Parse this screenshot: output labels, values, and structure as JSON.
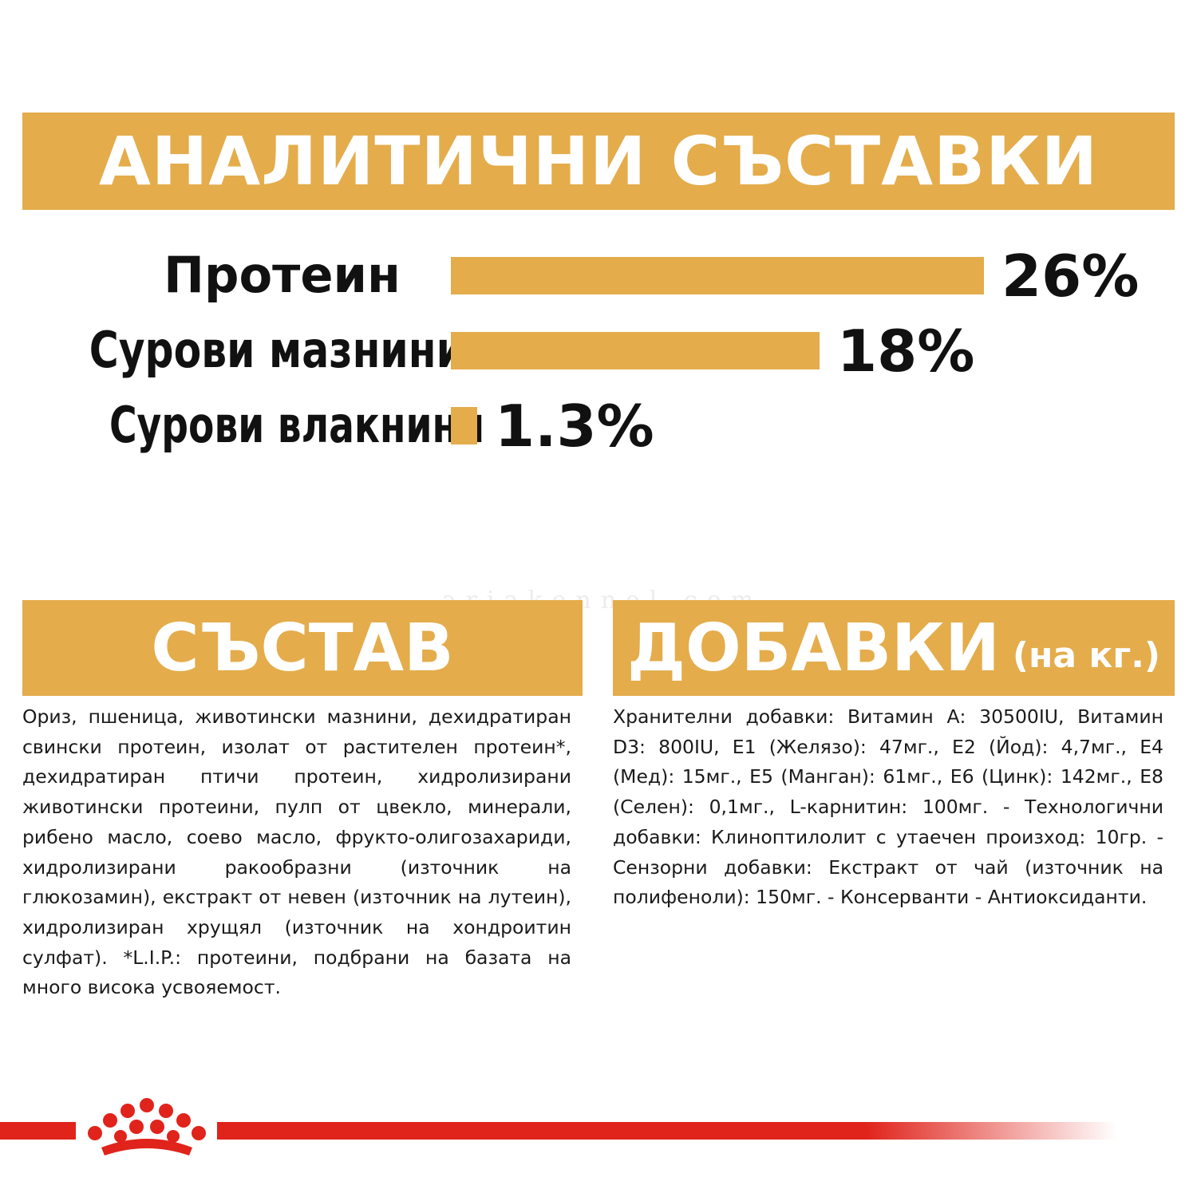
{
  "analytic": {
    "title": "АНАЛИТИЧНИ СЪСТАВКИ",
    "rows": [
      {
        "label": "Протеин",
        "percent_text": "26%",
        "value": 26
      },
      {
        "label": "Сурови мазнини",
        "percent_text": "18%",
        "value": 18
      },
      {
        "label": "Сурови влакнини",
        "percent_text": "1.3%",
        "value": 1.3
      }
    ]
  },
  "composition": {
    "title": "СЪСТАВ",
    "text": "Ориз, пшеница, животински мазнини, дехидратиран свински протеин, изолат от растителен протеин*, дехидратиран птичи протеин, хидролизирани животински протеини, пулп от цвекло, минерали, рибено масло, соево масло, фрукто-олигозахариди, хидролизирани ракообразни (източник на глюкозамин), екстракт от невен (източник на лутеин), хидролизиран хрущял (източник на хондроитин сулфат). *L.I.P.: протеини, подбрани на базата на много висока усвояемост."
  },
  "additives": {
    "title": "ДОБАВКИ",
    "subtitle": "(на кг.)",
    "text": "Хранителни добавки: Витамин А: 30500IU, Витамин D3: 800IU, Е1 (Желязо): 47мг., Е2 (Йод): 4,7мг., Е4 (Мед): 15мг., Е5 (Манган): 61мг., Е6 (Цинк): 142мг., Е8 (Селен): 0,1мг., L-карнитин: 100мг. - Технологични добавки: Клиноптилолит с утаечен произход: 10гр. - Сензорни добавки: Екстракт от чай (източник на полифеноли): 150мг. - Консерванти - Антиоксиданти."
  },
  "watermark": "ariakennel.com",
  "colors": {
    "accent": "#e4ac4b",
    "brand_red": "#e0231b",
    "text": "#111111"
  },
  "brand_logo": "royal-canin-crown-icon"
}
